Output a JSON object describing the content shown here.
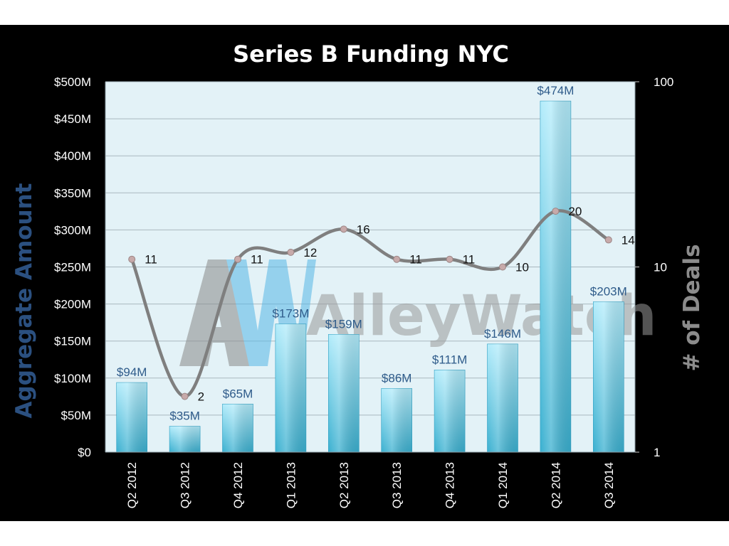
{
  "chart_data": {
    "type": "bar",
    "title": "Series B  Funding NYC",
    "ylabel": "Aggregate  Amount",
    "y2label": "# of Deals",
    "categories": [
      "Q2 2012",
      "Q3 2012",
      "Q4 2012",
      "Q1 2013",
      "Q2 2013",
      "Q3 2013",
      "Q4 2013",
      "Q1 2014",
      "Q2 2014",
      "Q3 2014"
    ],
    "series": [
      {
        "type": "bar",
        "axis": "left",
        "values": [
          94,
          35,
          65,
          173,
          159,
          86,
          111,
          146,
          474,
          203
        ],
        "labels": [
          "$94M",
          "$35M",
          "$65M",
          "$173M",
          "$159M",
          "$86M",
          "$111M",
          "$146M",
          "$474M",
          "$203M"
        ]
      },
      {
        "type": "line",
        "axis": "right",
        "values": [
          11,
          2,
          11,
          12,
          16,
          11,
          11,
          10,
          20,
          14
        ],
        "labels": [
          "11",
          "2",
          "11",
          "12",
          "16",
          "11",
          "11",
          "10",
          "20",
          "14"
        ]
      }
    ],
    "ylim": [
      0,
      500
    ],
    "yticks": [
      0,
      50,
      100,
      150,
      200,
      250,
      300,
      350,
      400,
      450,
      500
    ],
    "ytick_labels": [
      "$0",
      "$50M",
      "$100M",
      "$150M",
      "$200M",
      "$250M",
      "$300M",
      "$350M",
      "$400M",
      "$450M",
      "$500M"
    ],
    "y2lim": [
      1,
      100
    ],
    "y2scale": "log",
    "y2ticks": [
      1,
      10,
      100
    ],
    "y2tick_labels": [
      "1",
      "10",
      "100"
    ],
    "grid": true,
    "colors": {
      "bar_top": "#b3ecfb",
      "bar_bottom": "#3ab0d0",
      "line": "#7f7f7f",
      "marker": "#c7aaaa",
      "plot_bg": "#e3f2f7",
      "gridline": "#a9b8bf",
      "bar_label": "#2e5b8a",
      "ylabel": "#2b5080",
      "y2label": "#8c8c8c"
    }
  },
  "watermark": {
    "logo": "AW",
    "text": "AlleyWatch"
  }
}
